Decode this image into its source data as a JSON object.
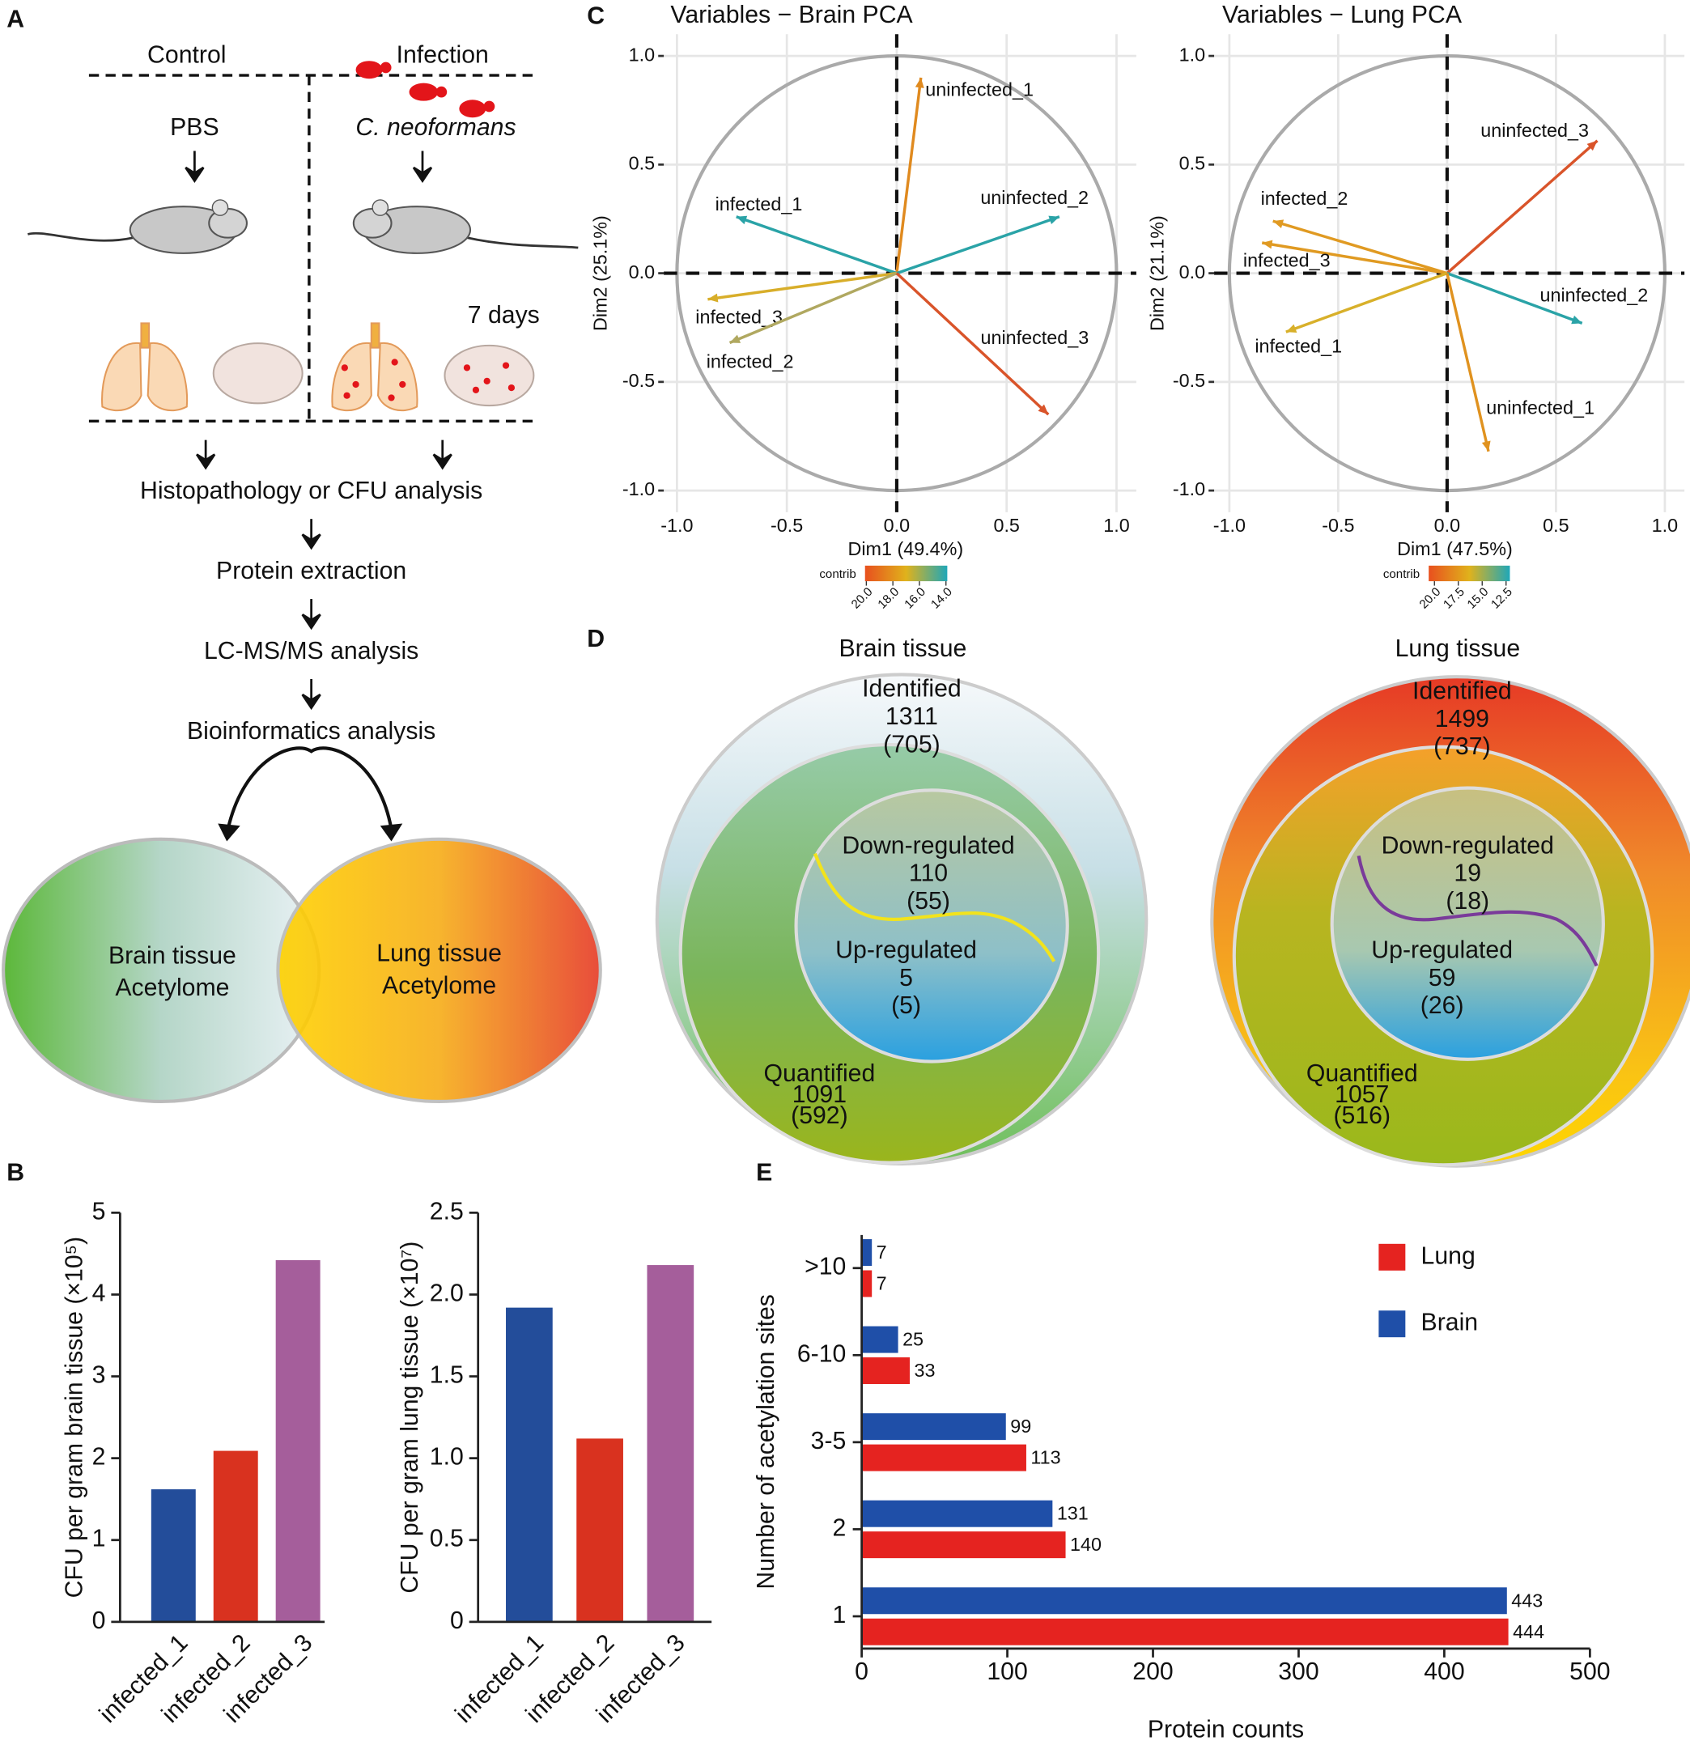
{
  "panel_labels": [
    "A",
    "B",
    "C",
    "D",
    "E"
  ],
  "workflow": {
    "control": "Control",
    "infection": "Infection",
    "pbs": "PBS",
    "pathogen": "C. neoformans",
    "duration": "7 days",
    "steps": [
      "Histopathology or CFU analysis",
      "Protein extraction",
      "LC-MS/MS analysis",
      "Bioinformatics analysis"
    ],
    "brain_oval": [
      "Brain tissue",
      "Acetylome"
    ],
    "lung_oval": [
      "Lung tissue",
      "Acetylome"
    ]
  },
  "venn": [
    {
      "title": "Brain tissue",
      "identified": [
        "Identified",
        "1311",
        "(705)"
      ],
      "down": [
        "Down-regulated",
        "110",
        "(55)"
      ],
      "up": [
        "Up-regulated",
        "5",
        "(5)"
      ],
      "quantified": [
        "Quantified",
        "1091",
        "(592)"
      ]
    },
    {
      "title": "Lung tissue",
      "identified": [
        "Identified",
        "1499",
        "(737)"
      ],
      "down": [
        "Down-regulated",
        "19",
        "(18)"
      ],
      "up": [
        "Up-regulated",
        "59",
        "(26)"
      ],
      "quantified": [
        "Quantified",
        "1057",
        "(516)"
      ]
    }
  ],
  "chart_data": [
    {
      "type": "bar",
      "ylabel": "CFU per gram brain tissue (×10⁵)",
      "categories": [
        "infected_1",
        "infected_2",
        "infected_3"
      ],
      "values": [
        1.62,
        2.09,
        4.42
      ],
      "colors": [
        "#234d9a",
        "#d9321f",
        "#a55e9b"
      ],
      "ylim": [
        0,
        5
      ],
      "yticks": [
        0,
        1,
        2,
        3,
        4,
        5
      ]
    },
    {
      "type": "bar",
      "ylabel": "CFU per gram lung tissue (×10⁷)",
      "categories": [
        "infected_1",
        "infected_2",
        "infected_3"
      ],
      "values": [
        1.92,
        1.12,
        2.18
      ],
      "colors": [
        "#234d9a",
        "#d9321f",
        "#a55e9b"
      ],
      "ylim": [
        0,
        2.5
      ],
      "yticks": [
        0,
        0.5,
        {
          "value": 1,
          "label": "1.0"
        },
        1.5,
        {
          "value": 2,
          "label": "2.0"
        },
        2.5
      ]
    },
    {
      "type": "vector",
      "title": "Variables − Brain PCA",
      "xlabel": "Dim1 (49.4%)",
      "ylabel": "Dim2 (25.1%)",
      "categories": [
        "uninfected_1",
        "uninfected_2",
        "infected_1",
        "infected_3",
        "infected_2",
        "uninfected_3"
      ],
      "x": [
        0.11,
        0.74,
        -0.73,
        -0.86,
        -0.76,
        0.69
      ],
      "values": [
        0.9,
        0.26,
        0.26,
        -0.12,
        -0.32,
        -0.65
      ],
      "colors": [
        "#e08a1f",
        "#2aa3a7",
        "#2aa3a7",
        "#d8ae2a",
        "#b0a860",
        "#d9542a"
      ],
      "xlim": [
        -1.06,
        1.09
      ],
      "ylim": [
        -1.1,
        1.1
      ],
      "xticks": [
        {
          "value": -1,
          "label": "-1.0"
        },
        -0.5,
        {
          "value": 0,
          "label": "0.0"
        },
        0.5,
        {
          "value": 1,
          "label": "1.0"
        }
      ],
      "yticks": [
        {
          "value": -1,
          "label": "-1.0"
        },
        -0.5,
        {
          "value": 0,
          "label": "0.0"
        },
        0.5,
        {
          "value": 1,
          "label": "1.0"
        }
      ],
      "grid": true,
      "colorbar": {
        "title": "contrib",
        "lim": [
          20.1,
          13.9
        ],
        "colors": [
          "#e8501e",
          "#e0b21c",
          "#1fa7b8"
        ],
        "ticks": [
          {
            "value": 20,
            "label": "20.0"
          },
          {
            "value": 18,
            "label": "18.0"
          },
          {
            "value": 16,
            "label": "16.0"
          },
          {
            "value": 14,
            "label": "14.0"
          }
        ]
      }
    },
    {
      "type": "vector",
      "title": "Variables − Lung PCA",
      "xlabel": "Dim1 (47.5%)",
      "ylabel": "Dim2 (21.1%)",
      "categories": [
        "uninfected_3",
        "infected_2",
        "infected_3",
        "uninfected_2",
        "infected_1",
        "uninfected_1"
      ],
      "x": [
        0.69,
        -0.8,
        -0.85,
        0.62,
        -0.74,
        0.19
      ],
      "values": [
        0.61,
        0.24,
        0.14,
        -0.23,
        -0.27,
        -0.82
      ],
      "colors": [
        "#d9542a",
        "#e09a22",
        "#e09a22",
        "#2aa3a7",
        "#d8b02a",
        "#e0921f"
      ],
      "xlim": [
        -1.07,
        1.09
      ],
      "ylim": [
        -1.1,
        1.1
      ],
      "xticks": [
        {
          "value": -1,
          "label": "-1.0"
        },
        -0.5,
        {
          "value": 0,
          "label": "0.0"
        },
        0.5,
        {
          "value": 1,
          "label": "1.0"
        }
      ],
      "yticks": [
        {
          "value": -1,
          "label": "-1.0"
        },
        -0.5,
        {
          "value": 0,
          "label": "0.0"
        },
        0.5,
        {
          "value": 1,
          "label": "1.0"
        }
      ],
      "grid": true,
      "colorbar": {
        "title": "contrib",
        "lim": [
          20.6,
          12.1
        ],
        "colors": [
          "#e8501e",
          "#e0b21c",
          "#1fa7b8"
        ],
        "ticks": [
          {
            "value": 20,
            "label": "20.0"
          },
          {
            "value": 17.5,
            "label": "17.5"
          },
          {
            "value": 15,
            "label": "15.0"
          },
          {
            "value": 12.5,
            "label": "12.5"
          }
        ]
      }
    },
    {
      "type": "barh",
      "xlabel": "Protein counts",
      "ylabel": "Number of acetylation sites",
      "categories": [
        "1",
        "2",
        "3-5",
        "6-10",
        ">10"
      ],
      "series": [
        {
          "name": "Brain",
          "color": "#1f4fa8",
          "values": [
            443,
            131,
            99,
            25,
            7
          ]
        },
        {
          "name": "Lung",
          "color": "#e52320",
          "values": [
            444,
            140,
            113,
            33,
            7
          ]
        }
      ],
      "xlim": [
        0,
        500
      ],
      "xticks": [
        0,
        100,
        200,
        300,
        400,
        500
      ],
      "legend": "upper right"
    }
  ]
}
